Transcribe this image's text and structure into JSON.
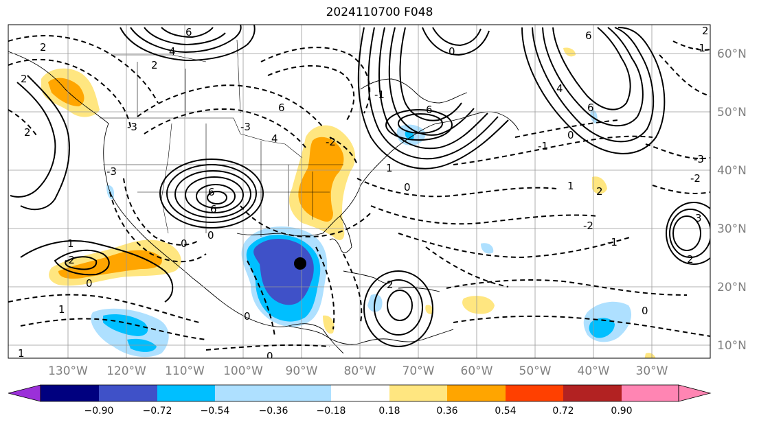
{
  "title": "2024110700 F048",
  "lat_labels": [
    "60°N",
    "50°N",
    "40°N",
    "30°N",
    "20°N",
    "10°N"
  ],
  "lon_labels": [
    "130°W",
    "120°W",
    "110°W",
    "100°W",
    "90°W",
    "80°W",
    "70°W",
    "60°W",
    "50°W",
    "40°W",
    "30°W"
  ],
  "colorbar": {
    "ticks": [
      "−0.90",
      "−0.72",
      "−0.54",
      "−0.36",
      "−0.18",
      "0.18",
      "0.36",
      "0.54",
      "0.72",
      "0.90"
    ],
    "colors": [
      "#9b30d9",
      "#00007f",
      "#3f51c8",
      "#00bfff",
      "#aee0ff",
      "#ffffff",
      "#ffe680",
      "#ffa500",
      "#ff4000",
      "#b22222",
      "#ff85b3"
    ]
  },
  "contour_labels": [
    "2",
    "6",
    "4",
    "2",
    "6",
    "4",
    "2",
    "-3",
    "6",
    "-3",
    "2",
    "6",
    "1",
    "-2",
    "0",
    "6",
    "4",
    "6",
    "6",
    "0",
    "1",
    "2",
    "-1",
    "-1",
    "0",
    "2",
    "-2",
    "0",
    "1",
    "-3",
    "-2",
    "3",
    "1",
    "2",
    "0",
    "0",
    "1",
    "-2",
    "0",
    "-1",
    "0",
    "-1",
    "-3",
    "0",
    "2"
  ],
  "marker": "low-center-dot"
}
